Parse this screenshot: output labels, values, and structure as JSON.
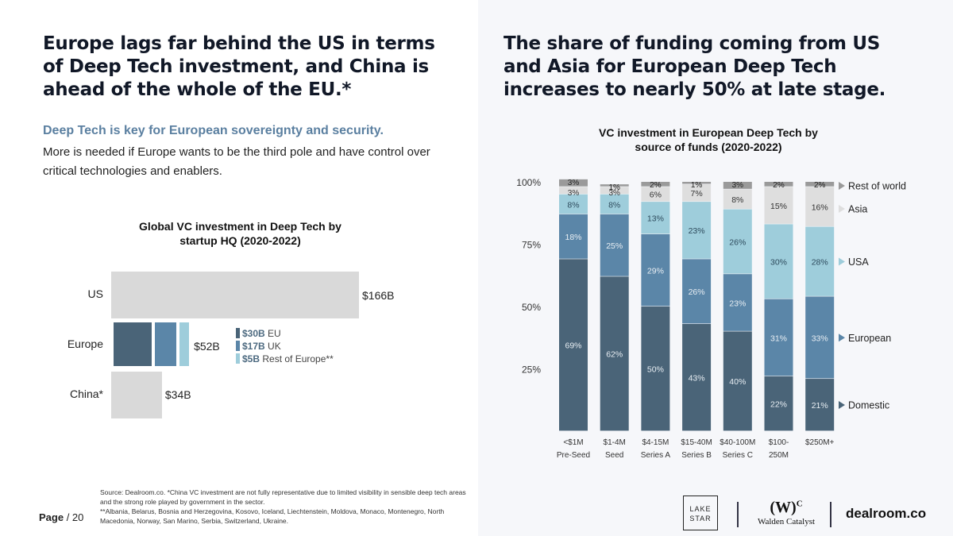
{
  "left": {
    "headline": "Europe lags far behind the US in terms of Deep Tech investment, and China is ahead of the whole of the EU.*",
    "subhead": "Deep Tech is key for European sovereignty and security.",
    "body": "More is needed if Europe wants to be the third pole and have control over critical technologies and enablers.",
    "footnote_1": "Source: Dealroom.co.  *China VC investment are not fully representative due to limited visibility in sensible deep tech areas and the strong role played by government in the sector.",
    "footnote_2": "**Albania, Belarus, Bosnia and Herzegovina, Kosovo, Iceland, Liechtenstein, Moldova, Monaco, Montenegro, North Macedonia, Norway, San Marino, Serbia, Switzerland, Ukraine.",
    "page_label": "Page",
    "page_number": "/ 20"
  },
  "right": {
    "headline": "The share of funding coming from US and Asia for European Deep Tech increases to nearly 50% at late stage."
  },
  "logos": {
    "lake_star": "LAKE STAR",
    "walden_mark": "(W)",
    "walden_sup": "C",
    "walden_name": "Walden Catalyst",
    "dealroom": "dealroom.co"
  },
  "colors": {
    "domestic": "#4a6478",
    "european": "#5b86a8",
    "usa": "#9ecddb",
    "asia": "#dedede",
    "rest_of_world": "#9a9a9a",
    "us_bar": "#d9d9d9",
    "eu_bar": "#4a6478",
    "uk_bar": "#5b86a8",
    "roe_bar": "#9ecddb",
    "subhead": "#5a7fa0"
  },
  "chart_data": [
    {
      "type": "bar",
      "orientation": "horizontal",
      "title": "Global VC investment in Deep Tech by startup HQ (2020-2022)",
      "unit": "$B",
      "categories": [
        "US",
        "Europe",
        "China*"
      ],
      "values": [
        166,
        52,
        34
      ],
      "value_labels": [
        "$166B",
        "$52B",
        "$34B"
      ],
      "europe_breakdown": [
        {
          "value_label": "$30B",
          "name": "EU",
          "value": 30
        },
        {
          "value_label": "$17B",
          "name": "UK",
          "value": 17
        },
        {
          "value_label": "$5B",
          "name": "Rest of Europe**",
          "value": 5
        }
      ]
    },
    {
      "type": "bar",
      "stacked": true,
      "title": "VC investment in European Deep Tech by source of funds (2020-2022)",
      "categories": [
        {
          "line1": "<$1M",
          "line2": "Pre-Seed"
        },
        {
          "line1": "$1-4M",
          "line2": "Seed"
        },
        {
          "line1": "$4-15M",
          "line2": "Series A"
        },
        {
          "line1": "$15-40M",
          "line2": "Series B"
        },
        {
          "line1": "$40-100M",
          "line2": "Series C"
        },
        {
          "line1": "$100-",
          "line2": "250M"
        },
        {
          "line1": "$250M+",
          "line2": ""
        }
      ],
      "y_ticks": [
        "100%",
        "75%",
        "50%",
        "25%"
      ],
      "ylim": [
        0,
        100
      ],
      "series": [
        {
          "name": "Domestic",
          "values": [
            69,
            62,
            50,
            43,
            40,
            22,
            21
          ]
        },
        {
          "name": "European",
          "values": [
            18,
            25,
            29,
            26,
            23,
            31,
            33
          ]
        },
        {
          "name": "USA",
          "values": [
            8,
            8,
            13,
            23,
            26,
            30,
            28
          ]
        },
        {
          "name": "Asia",
          "values": [
            3,
            3,
            6,
            7,
            8,
            15,
            16
          ]
        },
        {
          "name": "Rest of world",
          "values": [
            3,
            1,
            2,
            1,
            3,
            2,
            2
          ]
        }
      ]
    }
  ]
}
